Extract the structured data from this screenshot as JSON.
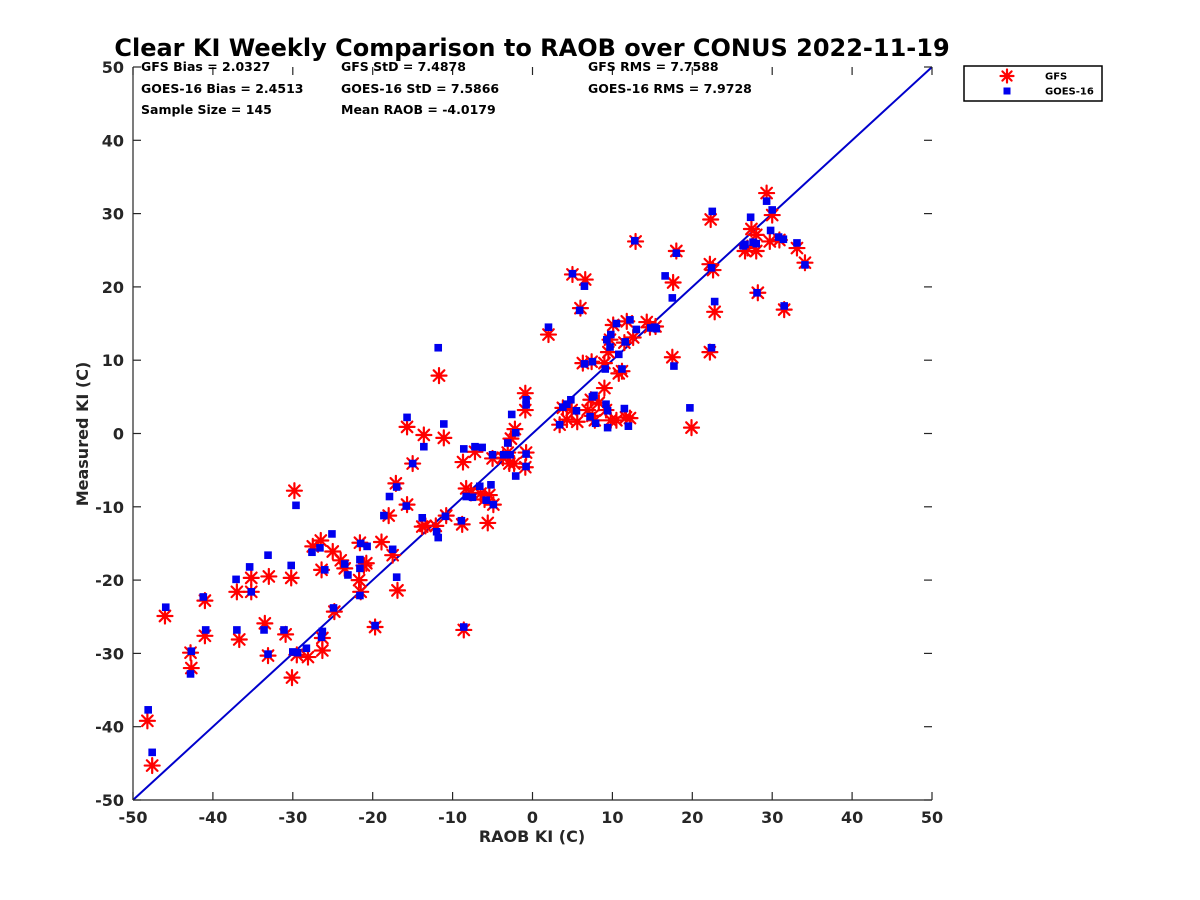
{
  "chart_data": {
    "type": "scatter",
    "title": "Clear KI Weekly Comparison to RAOB over CONUS 2022-11-19",
    "xlabel": "RAOB KI (C)",
    "ylabel": "Measured KI (C)",
    "xlim": [
      -50,
      50
    ],
    "ylim": [
      -50,
      50
    ],
    "xticks": [
      -50,
      -40,
      -30,
      -20,
      -10,
      0,
      10,
      20,
      30,
      40,
      50
    ],
    "yticks": [
      -50,
      -40,
      -30,
      -20,
      -10,
      0,
      10,
      20,
      30,
      40,
      50
    ],
    "xtick_labels": [
      "-50",
      "-40",
      "-30",
      "-20",
      "-10",
      "0",
      "10",
      "20",
      "30",
      "40",
      "50"
    ],
    "ytick_labels": [
      "-50",
      "-40",
      "-30",
      "-20",
      "-10",
      "0",
      "10",
      "20",
      "30",
      "40",
      "50"
    ],
    "grid": false,
    "legend_position": "top-right, outside plot",
    "reference_line": {
      "name": "1:1 line",
      "color": "#0000cc",
      "from": [
        -50,
        -50
      ],
      "to": [
        50,
        50
      ]
    },
    "stats": [
      [
        "GFS Bias = 2.0327",
        "GFS StD = 7.4878",
        "GFS RMS = 7.7588"
      ],
      [
        "GOES-16 Bias = 2.4513",
        "GOES-16 StD = 7.5866",
        "GOES-16 RMS = 7.9728"
      ],
      [
        "Sample Size = 145",
        "Mean RAOB = -4.0179",
        ""
      ]
    ],
    "series": [
      {
        "name": "GFS",
        "marker": "asterisk",
        "color": "#ff0000",
        "points": [
          [
            -48.2,
            -39.2
          ],
          [
            -47.6,
            -45.3
          ],
          [
            -46,
            -24.9
          ],
          [
            -42.8,
            -29.9
          ],
          [
            -42.7,
            -32
          ],
          [
            -41,
            -22.8
          ],
          [
            -41,
            -27.6
          ],
          [
            -37,
            -21.6
          ],
          [
            -36.7,
            -28.1
          ],
          [
            -35.2,
            -19.7
          ],
          [
            -35.2,
            -21.6
          ],
          [
            -33.5,
            -25.9
          ],
          [
            -33.1,
            -30.3
          ],
          [
            -33,
            -19.5
          ],
          [
            -30.9,
            -27.4
          ],
          [
            -30.2,
            -19.7
          ],
          [
            -30.1,
            -33.3
          ],
          [
            -29.8,
            -7.8
          ],
          [
            -29.5,
            -30.2
          ],
          [
            -28.1,
            -30.5
          ],
          [
            -27.5,
            -15.4
          ],
          [
            -26.5,
            -14.6
          ],
          [
            -26.4,
            -18.6
          ],
          [
            -26.3,
            -27.9
          ],
          [
            -26.3,
            -29.6
          ],
          [
            -25,
            -16.1
          ],
          [
            -24.8,
            -24.3
          ],
          [
            -24,
            -17.3
          ],
          [
            -23.5,
            -18.4
          ],
          [
            -21.7,
            -20
          ],
          [
            -21.6,
            -14.9
          ],
          [
            -21.5,
            -21.6
          ],
          [
            -21.1,
            -18
          ],
          [
            -20.8,
            -17.7
          ],
          [
            -19.7,
            -26.4
          ],
          [
            -18.9,
            -14.8
          ],
          [
            -18,
            -11.2
          ],
          [
            -17.5,
            -16.6
          ],
          [
            -17.1,
            -6.8
          ],
          [
            -16.9,
            -21.4
          ],
          [
            -15.7,
            -9.7
          ],
          [
            -15.7,
            0.9
          ],
          [
            -15,
            -4.1
          ],
          [
            -13.8,
            -12.7
          ],
          [
            -13.6,
            -0.2
          ],
          [
            -13.4,
            -12.6
          ],
          [
            -12.1,
            -12.6
          ],
          [
            -11.7,
            7.9
          ],
          [
            -11.1,
            -0.6
          ],
          [
            -10.8,
            -11.2
          ],
          [
            -8.8,
            -12.4
          ],
          [
            -8.7,
            -3.9
          ],
          [
            -8.6,
            -26.8
          ],
          [
            -8.3,
            -7.5
          ],
          [
            -7.7,
            -8.1
          ],
          [
            -7.2,
            -2.5
          ],
          [
            -6.5,
            -8.2
          ],
          [
            -6,
            -9
          ],
          [
            -5.6,
            -12.2
          ],
          [
            -5.4,
            -8.4
          ],
          [
            -5,
            -3.4
          ],
          [
            -4.9,
            -9.7
          ],
          [
            -3.7,
            -3.3
          ],
          [
            -3.1,
            -2.6
          ],
          [
            -2.9,
            -4.1
          ],
          [
            -2.7,
            -0.7
          ],
          [
            -2.3,
            -4.1
          ],
          [
            -2.2,
            0.6
          ],
          [
            -0.9,
            5.5
          ],
          [
            -0.9,
            3.2
          ],
          [
            -0.9,
            -4.6
          ],
          [
            -0.8,
            -2.6
          ],
          [
            2,
            13.5
          ],
          [
            3.4,
            1.2
          ],
          [
            3.8,
            3.5
          ],
          [
            4.3,
            1.9
          ],
          [
            4.9,
            3.2
          ],
          [
            5,
            21.7
          ],
          [
            5.6,
            1.6
          ],
          [
            6,
            17.1
          ],
          [
            6.3,
            9.6
          ],
          [
            6.6,
            21
          ],
          [
            6.9,
            3.2
          ],
          [
            7.3,
            4.6
          ],
          [
            7.4,
            9.8
          ],
          [
            7.5,
            2.4
          ],
          [
            7.8,
            1.8
          ],
          [
            8.3,
            4.2
          ],
          [
            9,
            9.6
          ],
          [
            9,
            6.2
          ],
          [
            9.2,
            3.2
          ],
          [
            9.5,
            11.1
          ],
          [
            9.7,
            12.8
          ],
          [
            9.8,
            1.8
          ],
          [
            10.1,
            14.8
          ],
          [
            10.5,
            1.8
          ],
          [
            10.8,
            8.2
          ],
          [
            11.2,
            8.5
          ],
          [
            11.5,
            12.4
          ],
          [
            11.7,
            2.2
          ],
          [
            11.8,
            15.3
          ],
          [
            12.2,
            2.1
          ],
          [
            12.6,
            13.1
          ],
          [
            12.9,
            26.2
          ],
          [
            14.3,
            15.2
          ],
          [
            14.7,
            14.5
          ],
          [
            15.4,
            14.6
          ],
          [
            17.5,
            10.4
          ],
          [
            17.6,
            20.6
          ],
          [
            18,
            24.9
          ],
          [
            19.9,
            0.8
          ],
          [
            22.2,
            23.1
          ],
          [
            22.2,
            11.1
          ],
          [
            22.3,
            29.2
          ],
          [
            22.6,
            22.3
          ],
          [
            22.8,
            16.6
          ],
          [
            26.6,
            24.9
          ],
          [
            26.9,
            25.3
          ],
          [
            27.4,
            27.9
          ],
          [
            28,
            24.9
          ],
          [
            28,
            27.1
          ],
          [
            28.2,
            19.2
          ],
          [
            29.3,
            32.8
          ],
          [
            29.7,
            26.2
          ],
          [
            30,
            29.8
          ],
          [
            30.9,
            26.4
          ],
          [
            31.5,
            16.9
          ],
          [
            33.1,
            25.3
          ],
          [
            34.1,
            23.3
          ]
        ]
      },
      {
        "name": "GOES-16",
        "marker": "square",
        "color": "#0000ee",
        "points": [
          [
            -48.1,
            -37.7
          ],
          [
            -47.6,
            -43.5
          ],
          [
            -45.9,
            -23.7
          ],
          [
            -42.8,
            -32.8
          ],
          [
            -42.7,
            -29.7
          ],
          [
            -41.2,
            -22.3
          ],
          [
            -40.9,
            -26.8
          ],
          [
            -37.1,
            -19.9
          ],
          [
            -37,
            -26.8
          ],
          [
            -35.4,
            -18.2
          ],
          [
            -35.2,
            -21.6
          ],
          [
            -33.6,
            -26.8
          ],
          [
            -33.1,
            -16.6
          ],
          [
            -33.1,
            -30.1
          ],
          [
            -31.1,
            -26.8
          ],
          [
            -30.2,
            -18
          ],
          [
            -30,
            -29.8
          ],
          [
            -29.6,
            -9.8
          ],
          [
            -29.4,
            -29.9
          ],
          [
            -28.3,
            -29.3
          ],
          [
            -27.6,
            -16.2
          ],
          [
            -26.6,
            -15.6
          ],
          [
            -26.4,
            -27.8
          ],
          [
            -26.3,
            -27
          ],
          [
            -26,
            -18.6
          ],
          [
            -25.1,
            -13.7
          ],
          [
            -24.9,
            -23.8
          ],
          [
            -23.5,
            -17.8
          ],
          [
            -23.1,
            -19.3
          ],
          [
            -21.6,
            -17.2
          ],
          [
            -21.6,
            -18.4
          ],
          [
            -21.6,
            -22.1
          ],
          [
            -21.5,
            -15
          ],
          [
            -20.7,
            -15.4
          ],
          [
            -19.7,
            -26.2
          ],
          [
            -18.6,
            -11.2
          ],
          [
            -17.9,
            -8.6
          ],
          [
            -17.5,
            -15.8
          ],
          [
            -17,
            -7.3
          ],
          [
            -17,
            -19.6
          ],
          [
            -15.8,
            -9.9
          ],
          [
            -15.7,
            2.2
          ],
          [
            -15,
            -4.1
          ],
          [
            -13.8,
            -11.5
          ],
          [
            -13.6,
            -1.8
          ],
          [
            -12,
            -13.4
          ],
          [
            -11.8,
            -14.2
          ],
          [
            -11.8,
            11.7
          ],
          [
            -11.1,
            1.3
          ],
          [
            -10.9,
            -11.3
          ],
          [
            -8.9,
            -11.9
          ],
          [
            -8.6,
            -2.1
          ],
          [
            -8.6,
            -26.4
          ],
          [
            -8.3,
            -8.6
          ],
          [
            -7.5,
            -8.7
          ],
          [
            -7.2,
            -1.8
          ],
          [
            -6.6,
            -7.2
          ],
          [
            -6.3,
            -1.9
          ],
          [
            -5.8,
            -9.1
          ],
          [
            -5.2,
            -7
          ],
          [
            -5,
            -2.9
          ],
          [
            -4.9,
            -9.7
          ],
          [
            -3.6,
            -2.9
          ],
          [
            -3.1,
            -1.3
          ],
          [
            -2.8,
            -2.9
          ],
          [
            -2.6,
            2.6
          ],
          [
            -2.1,
            0.1
          ],
          [
            -2.1,
            -5.8
          ],
          [
            -0.8,
            4.6
          ],
          [
            -0.8,
            3.9
          ],
          [
            -0.8,
            -2.8
          ],
          [
            -0.8,
            -4.5
          ],
          [
            2,
            14.5
          ],
          [
            3.4,
            1.2
          ],
          [
            3.8,
            3.6
          ],
          [
            4.3,
            4
          ],
          [
            4.8,
            4.6
          ],
          [
            5,
            21.8
          ],
          [
            5.5,
            3.1
          ],
          [
            5.9,
            16.8
          ],
          [
            6.5,
            20.1
          ],
          [
            6.5,
            9.5
          ],
          [
            7.2,
            2.3
          ],
          [
            7.5,
            5
          ],
          [
            7.5,
            9.8
          ],
          [
            7.7,
            5.2
          ],
          [
            7.9,
            1.4
          ],
          [
            9.1,
            8.8
          ],
          [
            9.2,
            4
          ],
          [
            9.3,
            12.8
          ],
          [
            9.4,
            3.1
          ],
          [
            9.4,
            0.8
          ],
          [
            9.7,
            11.8
          ],
          [
            9.8,
            13.5
          ],
          [
            10.5,
            15
          ],
          [
            10.8,
            10.8
          ],
          [
            11.2,
            8.8
          ],
          [
            11.5,
            3.4
          ],
          [
            11.6,
            12.5
          ],
          [
            12,
            1
          ],
          [
            12.2,
            15.5
          ],
          [
            12.8,
            26.3
          ],
          [
            13,
            14.2
          ],
          [
            14.8,
            14.4
          ],
          [
            15.3,
            14.5
          ],
          [
            15.5,
            14.3
          ],
          [
            16.6,
            21.5
          ],
          [
            17.5,
            18.5
          ],
          [
            17.7,
            9.2
          ],
          [
            18,
            24.6
          ],
          [
            19.7,
            3.5
          ],
          [
            22.4,
            22.6
          ],
          [
            22.4,
            11.7
          ],
          [
            22.5,
            30.3
          ],
          [
            22.8,
            18
          ],
          [
            26.4,
            25.6
          ],
          [
            26.6,
            25.8
          ],
          [
            27.3,
            29.5
          ],
          [
            27.6,
            26.1
          ],
          [
            28,
            25.9
          ],
          [
            28.1,
            19.2
          ],
          [
            29.3,
            31.7
          ],
          [
            29.8,
            27.7
          ],
          [
            30,
            30.5
          ],
          [
            30.8,
            26.8
          ],
          [
            31.4,
            26.5
          ],
          [
            31.5,
            17.4
          ],
          [
            33.1,
            26
          ],
          [
            34.1,
            23
          ]
        ]
      }
    ]
  }
}
